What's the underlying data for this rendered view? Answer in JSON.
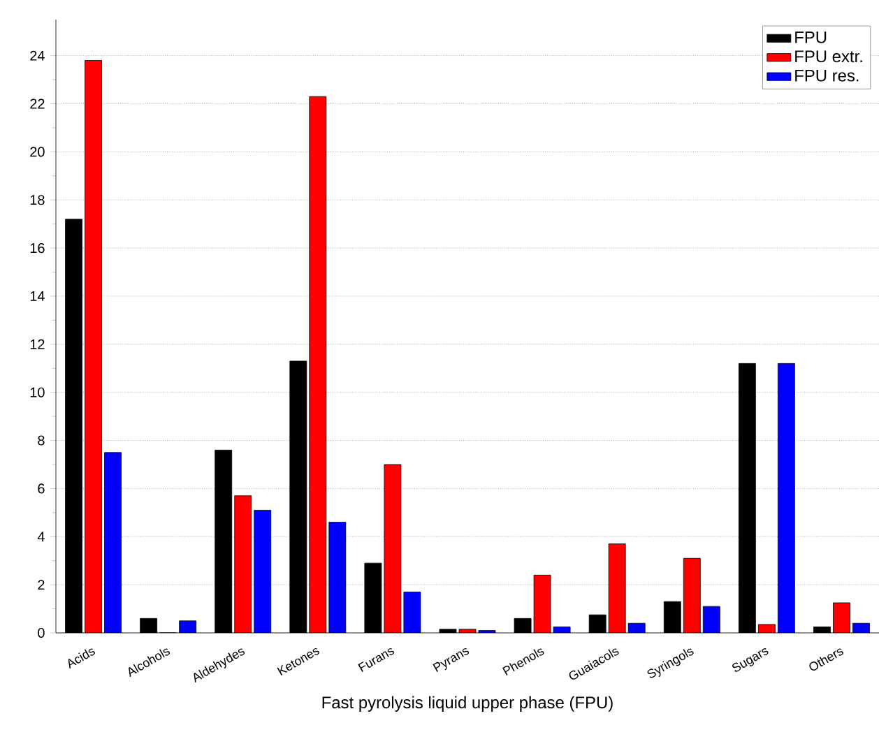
{
  "chart_data": {
    "type": "bar",
    "xlabel": "Fast pyrolysis liquid upper phase (FPU)",
    "categories": [
      "Acids",
      "Alcohols",
      "Aldehydes",
      "Ketones",
      "Furans",
      "Pyrans",
      "Phenols",
      "Guaiacols",
      "Syringols",
      "Sugars",
      "Others"
    ],
    "series": [
      {
        "name": "FPU",
        "color": "#000000",
        "values": [
          17.2,
          0.6,
          7.6,
          11.3,
          2.9,
          0.15,
          0.6,
          0.75,
          1.3,
          11.2,
          0.25
        ]
      },
      {
        "name": "FPU extr.",
        "color": "#ff0000",
        "values": [
          23.8,
          0,
          5.7,
          22.3,
          7.0,
          0.15,
          2.4,
          3.7,
          3.1,
          0.35,
          1.25
        ]
      },
      {
        "name": "FPU res.",
        "color": "#0000ff",
        "values": [
          7.5,
          0.5,
          5.1,
          4.6,
          1.7,
          0.1,
          0.25,
          0.4,
          1.1,
          11.2,
          0.4
        ]
      }
    ],
    "ylim": [
      0,
      25.5
    ],
    "yticks": [
      0,
      2,
      4,
      6,
      8,
      10,
      12,
      14,
      16,
      18,
      20,
      22,
      24
    ],
    "grid": "y",
    "legend": "top right"
  }
}
